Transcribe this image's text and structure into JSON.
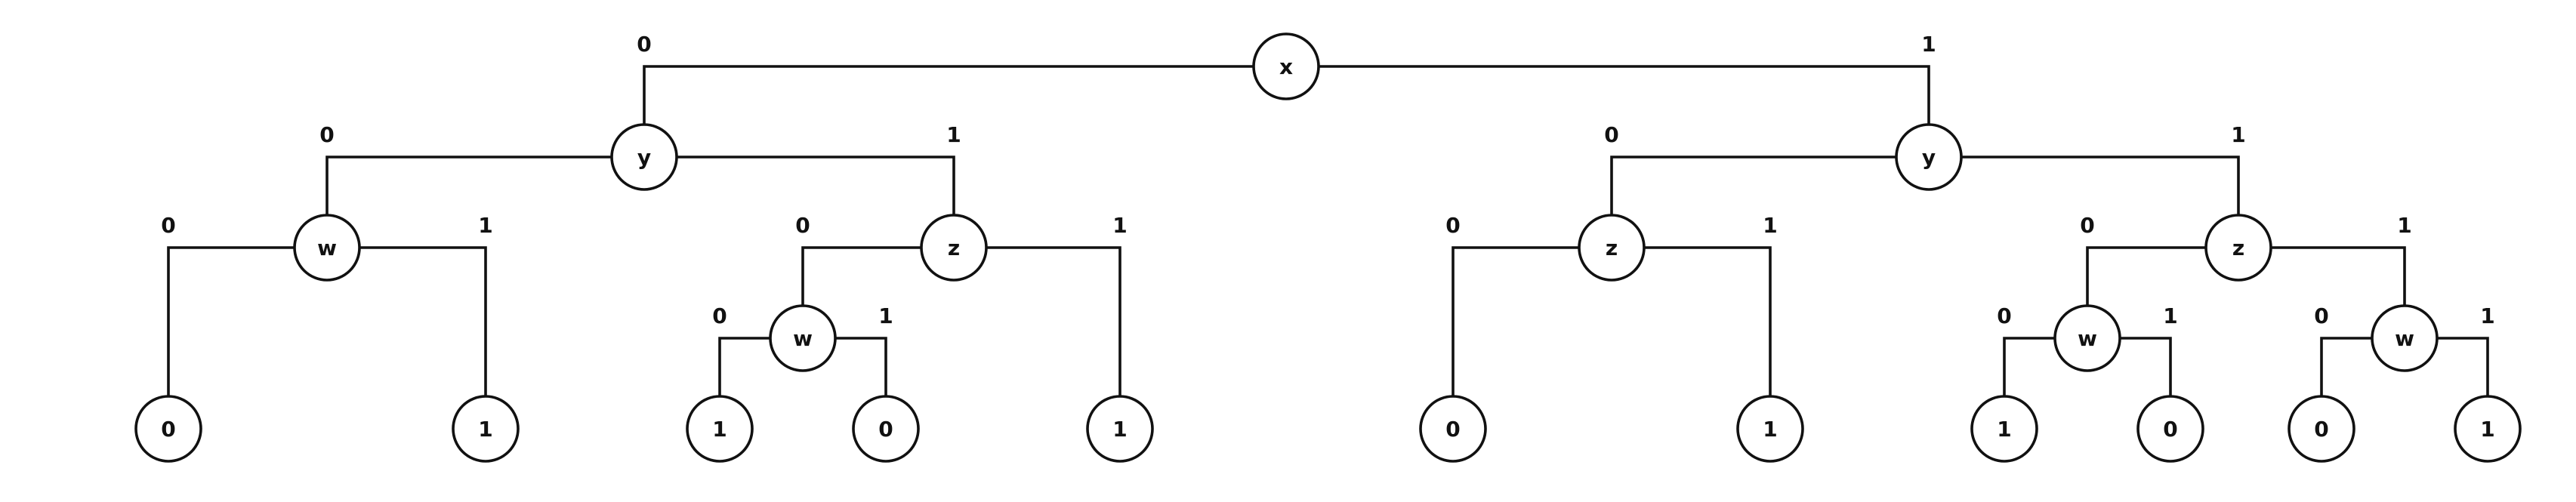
{
  "diagram": {
    "root": {
      "label": "x",
      "low": {
        "label": "y",
        "low": {
          "label": "w",
          "low": {
            "label": "0"
          },
          "high": {
            "label": "1"
          }
        },
        "high": {
          "label": "z",
          "low": {
            "label": "w",
            "low": {
              "label": "1"
            },
            "high": {
              "label": "0"
            }
          },
          "high": {
            "label": "1"
          }
        }
      },
      "high": {
        "label": "y",
        "low": {
          "label": "z",
          "low": {
            "label": "0"
          },
          "high": {
            "label": "1"
          }
        },
        "high": {
          "label": "z",
          "low": {
            "label": "w",
            "low": {
              "label": "1"
            },
            "high": {
              "label": "0"
            }
          },
          "high": {
            "label": "w",
            "low": {
              "label": "0"
            },
            "high": {
              "label": "1"
            }
          }
        }
      }
    },
    "branch_labels": {
      "low": "0",
      "high": "1"
    }
  }
}
